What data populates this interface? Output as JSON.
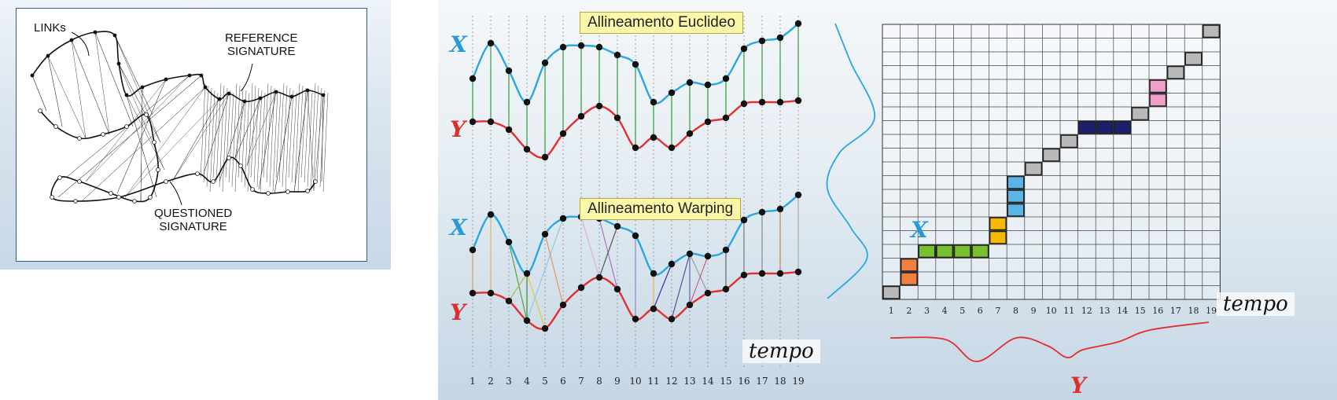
{
  "signature_panel": {
    "links_label": "LINKs",
    "reference_label": "REFERENCE\nSIGNATURE",
    "reference_line1": "REFERENCE",
    "reference_line2": "SIGNATURE",
    "questioned_line1": "QUESTIONED",
    "questioned_line2": "SIGNATURE"
  },
  "euclidean_panel": {
    "title": "Allineamento Euclideo",
    "x_label": "X",
    "y_label": "Y"
  },
  "warping_panel": {
    "title": "Allineamento Warping",
    "x_label": "X",
    "y_label": "Y",
    "tempo_label": "tempo"
  },
  "time_ticks": [
    "1",
    "2",
    "3",
    "4",
    "5",
    "6",
    "7",
    "8",
    "9",
    "10",
    "11",
    "12",
    "13",
    "14",
    "15",
    "16",
    "17",
    "18",
    "19"
  ],
  "grid_panel": {
    "x_label": "X",
    "y_label": "Y",
    "tempo_label": "tempo",
    "col_ticks": [
      "1",
      "2",
      "3",
      "4",
      "5",
      "6",
      "7",
      "8",
      "9",
      "10",
      "11",
      "12",
      "13",
      "14",
      "15",
      "16",
      "17",
      "18",
      "19"
    ]
  },
  "colors": {
    "x_series": "#2aa6e0",
    "y_series": "#e03030",
    "dot": "#111111",
    "label_x": "#2a9ad6",
    "label_y": "#d9302c"
  }
}
